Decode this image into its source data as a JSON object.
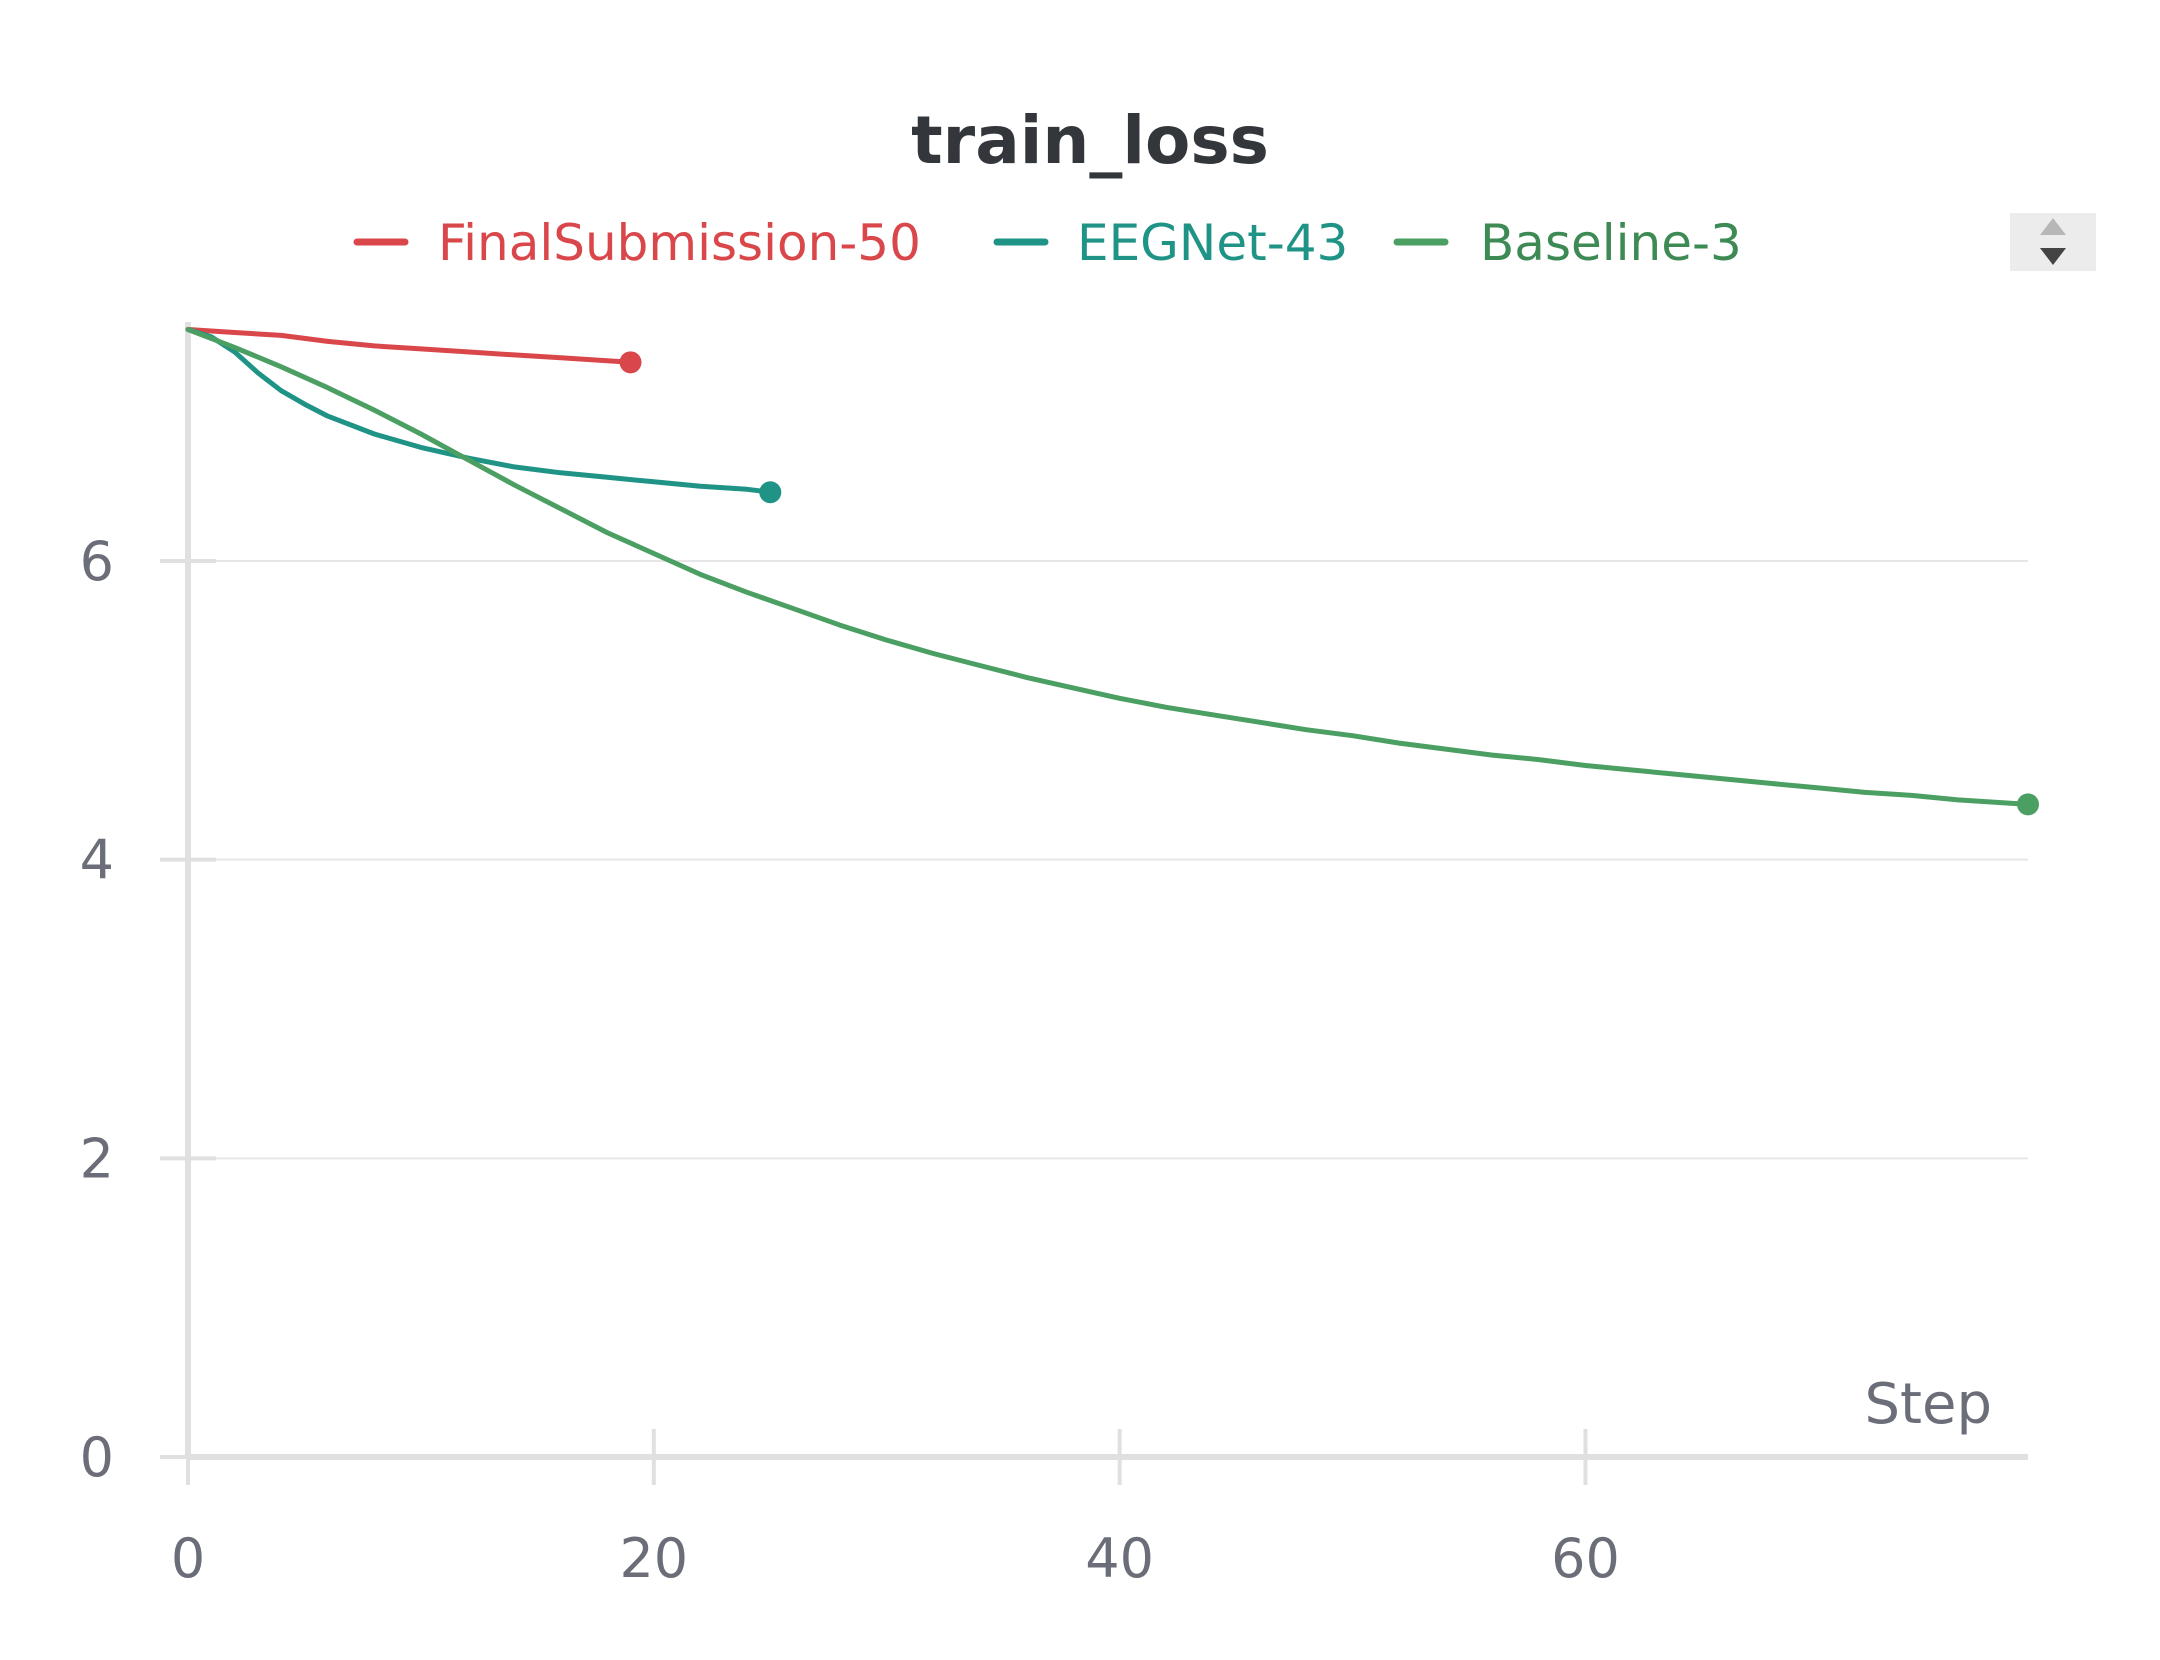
{
  "chart_data": {
    "type": "line",
    "title": "train_loss",
    "xlabel": "Step",
    "ylabel": "",
    "xlim": [
      0,
      79
    ],
    "ylim": [
      0,
      7.6
    ],
    "x_ticks": [
      0,
      20,
      40,
      60
    ],
    "y_ticks": [
      0,
      2,
      4,
      6
    ],
    "grid": true,
    "legend": "top",
    "series": [
      {
        "name": "FinalSubmission-50",
        "color": "#d9474b",
        "x": [
          0,
          2,
          4,
          6,
          8,
          10,
          12,
          14,
          16,
          18,
          19
        ],
        "y": [
          7.55,
          7.53,
          7.51,
          7.47,
          7.44,
          7.42,
          7.4,
          7.38,
          7.36,
          7.34,
          7.33
        ]
      },
      {
        "name": "EEGNet-43",
        "color": "#1f9486",
        "x": [
          0,
          1,
          2,
          3,
          4,
          5,
          6,
          8,
          10,
          12,
          14,
          16,
          18,
          20,
          22,
          24,
          25
        ],
        "y": [
          7.55,
          7.5,
          7.4,
          7.26,
          7.14,
          7.05,
          6.97,
          6.85,
          6.76,
          6.69,
          6.63,
          6.59,
          6.56,
          6.53,
          6.5,
          6.48,
          6.46
        ]
      },
      {
        "name": "Baseline-3",
        "color": "#4c9f63",
        "x": [
          0,
          2,
          4,
          6,
          8,
          10,
          12,
          14,
          16,
          18,
          20,
          22,
          24,
          26,
          28,
          30,
          32,
          34,
          36,
          38,
          40,
          42,
          44,
          46,
          48,
          50,
          52,
          54,
          56,
          58,
          60,
          62,
          64,
          66,
          68,
          70,
          72,
          74,
          76,
          79
        ],
        "y": [
          7.55,
          7.43,
          7.3,
          7.16,
          7.01,
          6.85,
          6.68,
          6.51,
          6.35,
          6.19,
          6.05,
          5.91,
          5.79,
          5.68,
          5.57,
          5.47,
          5.38,
          5.3,
          5.22,
          5.15,
          5.08,
          5.02,
          4.97,
          4.92,
          4.87,
          4.83,
          4.78,
          4.74,
          4.7,
          4.67,
          4.63,
          4.6,
          4.57,
          4.54,
          4.51,
          4.48,
          4.45,
          4.43,
          4.4,
          4.37
        ]
      }
    ]
  }
}
